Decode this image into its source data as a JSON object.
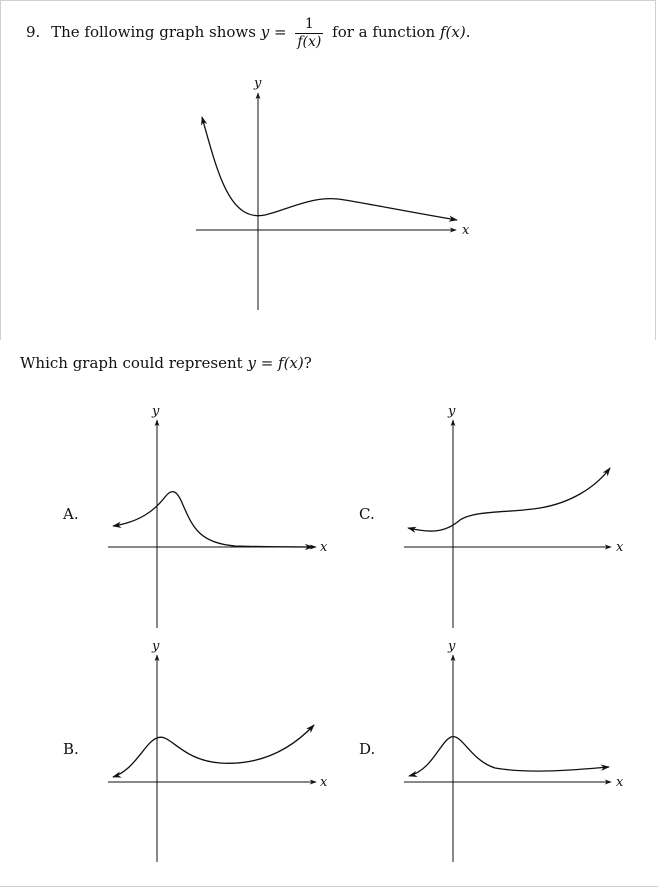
{
  "question": {
    "number": "9.",
    "text_before": "The following graph shows",
    "y_var": "y",
    "equals": "=",
    "frac_num": "1",
    "frac_den": "f(x)",
    "text_after": "for a function",
    "func": "f(x)",
    "period": "."
  },
  "prompt": {
    "text_before": "Which graph could represent",
    "expr": "y = f(x)",
    "qmark": "?"
  },
  "axis_labels": {
    "x": "x",
    "y": "y"
  },
  "options": [
    {
      "label": "A."
    },
    {
      "label": "B."
    },
    {
      "label": "C."
    },
    {
      "label": "D."
    }
  ]
}
